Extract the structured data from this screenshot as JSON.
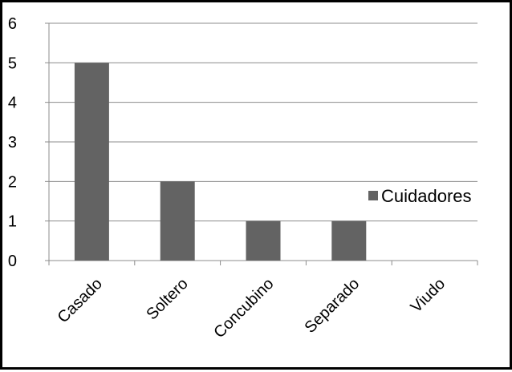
{
  "chart_data": {
    "type": "bar",
    "categories": [
      "Casado",
      "Soltero",
      "Concubino",
      "Separado",
      "Viudo"
    ],
    "series": [
      {
        "name": "Cuidadores",
        "values": [
          5,
          2,
          1,
          1,
          0
        ],
        "color": "#636363"
      }
    ],
    "ylim": [
      0,
      6
    ],
    "yticks": [
      "0",
      "1",
      "2",
      "3",
      "4",
      "5",
      "6"
    ],
    "grid": true,
    "legend": "right",
    "colors": {
      "gridline": "#8c8c8c",
      "axis": "#8c8c8c",
      "border": "#000000"
    }
  }
}
